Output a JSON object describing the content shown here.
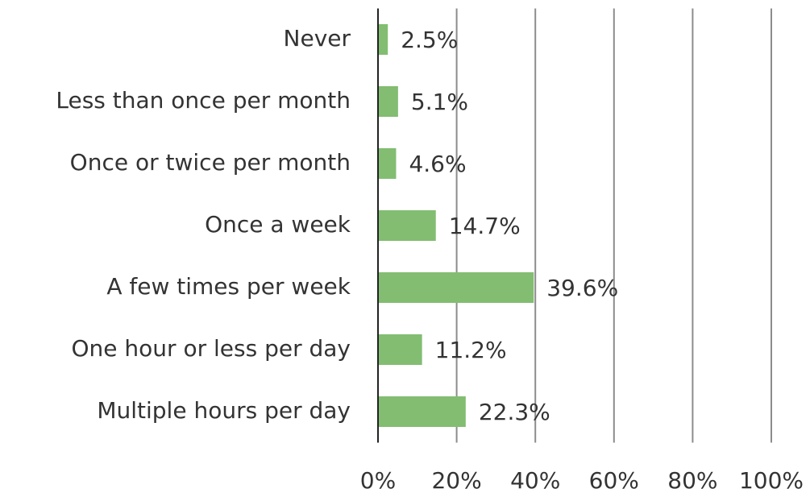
{
  "chart_data": {
    "type": "hbar",
    "categories": [
      "Never",
      "Less than once per month",
      "Once or twice per month",
      "Once a week",
      "A few times per week",
      "One hour or less per day",
      "Multiple hours per day"
    ],
    "values": [
      2.5,
      5.1,
      4.6,
      14.7,
      39.6,
      11.2,
      22.3
    ],
    "value_labels": [
      "2.5%",
      "5.1%",
      "4.6%",
      "14.7%",
      "39.6%",
      "11.2%",
      "22.3%"
    ],
    "color": "#82bd72",
    "xlim": [
      0,
      100
    ],
    "xticks": [
      {
        "value": 0,
        "label": "0%"
      },
      {
        "value": 20,
        "label": "20%"
      },
      {
        "value": 40,
        "label": "40%"
      },
      {
        "value": 60,
        "label": "60%"
      },
      {
        "value": 80,
        "label": "80%"
      },
      {
        "value": 100,
        "label": "100%"
      }
    ],
    "grid": true
  }
}
